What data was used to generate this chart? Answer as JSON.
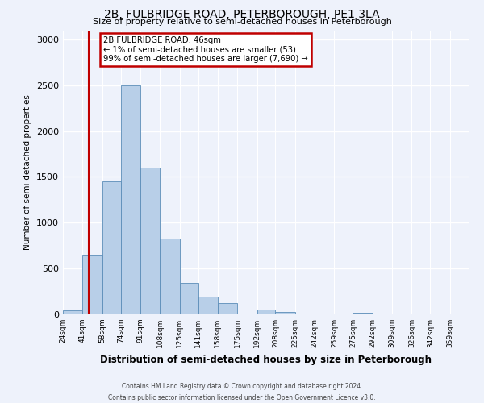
{
  "title": "2B, FULBRIDGE ROAD, PETERBOROUGH, PE1 3LA",
  "subtitle": "Size of property relative to semi-detached houses in Peterborough",
  "xlabel": "Distribution of semi-detached houses by size in Peterborough",
  "ylabel": "Number of semi-detached properties",
  "bin_labels": [
    "24sqm",
    "41sqm",
    "58sqm",
    "74sqm",
    "91sqm",
    "108sqm",
    "125sqm",
    "141sqm",
    "158sqm",
    "175sqm",
    "192sqm",
    "208sqm",
    "225sqm",
    "242sqm",
    "259sqm",
    "275sqm",
    "292sqm",
    "309sqm",
    "326sqm",
    "342sqm",
    "359sqm"
  ],
  "bin_edges": [
    24,
    41,
    58,
    74,
    91,
    108,
    125,
    141,
    158,
    175,
    192,
    208,
    225,
    242,
    259,
    275,
    292,
    309,
    326,
    342,
    359,
    376
  ],
  "bar_values": [
    40,
    650,
    1450,
    2500,
    1600,
    830,
    340,
    190,
    120,
    0,
    50,
    30,
    0,
    0,
    0,
    20,
    0,
    0,
    0,
    10,
    0
  ],
  "bar_color": "#b8cfe8",
  "bar_edge_color": "#5b8db8",
  "property_line_x": 46,
  "property_line_color": "#c00000",
  "ylim": [
    0,
    3100
  ],
  "yticks": [
    0,
    500,
    1000,
    1500,
    2000,
    2500,
    3000
  ],
  "annotation_title": "2B FULBRIDGE ROAD: 46sqm",
  "annotation_line1": "← 1% of semi-detached houses are smaller (53)",
  "annotation_line2": "99% of semi-detached houses are larger (7,690) →",
  "annotation_box_color": "#c00000",
  "footer_line1": "Contains HM Land Registry data © Crown copyright and database right 2024.",
  "footer_line2": "Contains public sector information licensed under the Open Government Licence v3.0.",
  "background_color": "#eef2fb",
  "grid_color": "#ffffff"
}
